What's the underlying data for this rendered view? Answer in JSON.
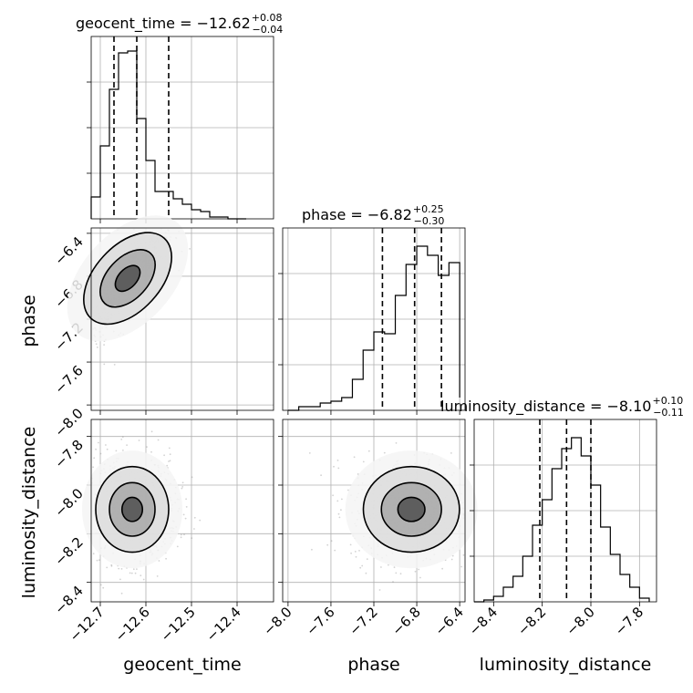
{
  "chart_data": {
    "type": "corner",
    "parameters": [
      "geocent_time",
      "phase",
      "luminosity_distance"
    ],
    "axis_labels": {
      "geocent_time": "geocent_time",
      "phase": "phase",
      "luminosity_distance": "luminosity_distance"
    },
    "ranges": {
      "geocent_time": [
        -12.72,
        -12.32
      ],
      "phase": [
        -8.05,
        -6.35
      ],
      "luminosity_distance": [
        -8.48,
        -7.73
      ]
    },
    "ticks": {
      "geocent_time": {
        "values": [
          -12.7,
          -12.6,
          -12.5,
          -12.4
        ],
        "labels": [
          "−12.7",
          "−12.6",
          "−12.5",
          "−12.4"
        ]
      },
      "phase": {
        "values": [
          -8.0,
          -7.6,
          -7.2,
          -6.8,
          -6.4
        ],
        "labels": [
          "−8.0",
          "−7.6",
          "−7.2",
          "−6.8",
          "−6.4"
        ]
      },
      "luminosity_distance_x": {
        "values": [
          -8.4,
          -8.2,
          -8.0,
          -7.8
        ],
        "labels": [
          "−8.4",
          "−8.2",
          "−8.0",
          "−7.8"
        ]
      },
      "luminosity_distance_y": {
        "values": [
          -7.8,
          -8.0,
          -8.2,
          -8.4
        ],
        "labels": [
          "−7.8",
          "−8.0",
          "−8.2",
          "−8.4"
        ]
      }
    },
    "titles": {
      "geocent_time": {
        "main": "geocent_time = −12.62",
        "sup": "+0.08",
        "sub": "−0.04"
      },
      "phase": {
        "main": "phase = −6.82",
        "sup": "+0.25",
        "sub": "−0.30"
      },
      "luminosity_distance": {
        "main": "luminosity_distance = −8.10",
        "sup": "+0.10",
        "sub": "−0.11"
      }
    },
    "histograms": {
      "geocent_time": {
        "edges": [
          -12.72,
          -12.7,
          -12.68,
          -12.66,
          -12.64,
          -12.62,
          -12.6,
          -12.58,
          -12.56,
          -12.54,
          -12.52,
          -12.5,
          -12.48,
          -12.46,
          -12.44,
          -12.42,
          -12.4,
          -12.38
        ],
        "heights": [
          0.12,
          0.4,
          0.71,
          0.91,
          0.92,
          0.55,
          0.32,
          0.15,
          0.15,
          0.11,
          0.08,
          0.05,
          0.04,
          0.01,
          0.01,
          0.0,
          0.0
        ]
      },
      "phase": {
        "edges": [
          -8.0,
          -7.9,
          -7.8,
          -7.7,
          -7.6,
          -7.5,
          -7.4,
          -7.3,
          -7.2,
          -7.1,
          -7.0,
          -6.9,
          -6.8,
          -6.7,
          -6.6,
          -6.5,
          -6.4
        ],
        "heights": [
          0.0,
          0.02,
          0.02,
          0.04,
          0.05,
          0.07,
          0.17,
          0.33,
          0.43,
          0.42,
          0.63,
          0.8,
          0.9,
          0.85,
          0.74,
          0.81,
          0.07
        ]
      },
      "luminosity_distance": {
        "edges": [
          -8.48,
          -8.44,
          -8.4,
          -8.36,
          -8.32,
          -8.28,
          -8.24,
          -8.2,
          -8.16,
          -8.12,
          -8.08,
          -8.04,
          -8.0,
          -7.96,
          -7.92,
          -7.88,
          -7.84,
          -7.8,
          -7.76
        ],
        "heights": [
          0.0,
          0.01,
          0.03,
          0.08,
          0.14,
          0.25,
          0.42,
          0.56,
          0.73,
          0.84,
          0.9,
          0.8,
          0.64,
          0.41,
          0.26,
          0.15,
          0.08,
          0.02,
          0.0
        ]
      }
    },
    "quantiles": {
      "geocent_time": [
        -12.67,
        -12.62,
        -12.55
      ],
      "phase": [
        -7.12,
        -6.82,
        -6.57
      ],
      "luminosity_distance": [
        -8.21,
        -8.1,
        -8.0
      ]
    },
    "scatter_2d": {
      "phase_vs_geocent_time": {
        "center": [
          -12.64,
          -6.82
        ],
        "spread": [
          0.05,
          0.28
        ],
        "correlation": 0.8
      },
      "luminosity_distance_vs_geocent_time": {
        "center": [
          -12.63,
          -8.1
        ],
        "spread": [
          0.05,
          0.11
        ],
        "correlation": 0.0
      },
      "luminosity_distance_vs_phase": {
        "center": [
          -6.85,
          -8.1
        ],
        "spread": [
          0.28,
          0.11
        ],
        "correlation": 0.0
      }
    }
  }
}
